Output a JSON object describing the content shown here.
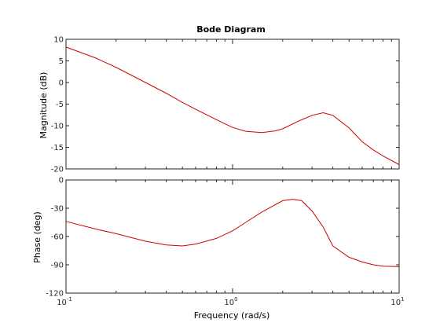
{
  "chart_data": [
    {
      "type": "line",
      "title": "Bode Diagram",
      "xlabel": "Frequency  (rad/s)",
      "ylabel": "Magnitude (dB)",
      "xscale": "log",
      "xlim": [
        0.1,
        10
      ],
      "ylim": [
        -20,
        10
      ],
      "yticks": [
        10,
        5,
        0,
        -5,
        -10,
        -15,
        -20
      ],
      "grid": false,
      "line_color": "#d00000",
      "series": [
        {
          "x": [
            0.1,
            0.15,
            0.2,
            0.3,
            0.4,
            0.5,
            0.6,
            0.8,
            1.0,
            1.2,
            1.5,
            1.8,
            2.0,
            2.5,
            3.0,
            3.5,
            4.0,
            5.0,
            6.0,
            7.0,
            8.0,
            10.0
          ],
          "y": [
            8.2,
            5.7,
            3.5,
            0.0,
            -2.5,
            -4.6,
            -6.2,
            -8.6,
            -10.4,
            -11.3,
            -11.6,
            -11.2,
            -10.7,
            -8.9,
            -7.6,
            -7.0,
            -7.6,
            -10.5,
            -13.7,
            -15.6,
            -17.0,
            -19.0
          ]
        }
      ]
    },
    {
      "type": "line",
      "xlabel": "Frequency  (rad/s)",
      "ylabel": "Phase (deg)",
      "xscale": "log",
      "xlim": [
        0.1,
        10
      ],
      "ylim": [
        -120,
        0
      ],
      "yticks": [
        0,
        -30,
        -60,
        -90,
        -120
      ],
      "xticks": [
        {
          "base": "10",
          "exp": "-1"
        },
        {
          "base": "10",
          "exp": "0"
        },
        {
          "base": "10",
          "exp": "1"
        }
      ],
      "grid": false,
      "line_color": "#d00000",
      "series": [
        {
          "x": [
            0.1,
            0.15,
            0.2,
            0.3,
            0.4,
            0.5,
            0.6,
            0.8,
            1.0,
            1.2,
            1.5,
            2.0,
            2.3,
            2.6,
            3.0,
            3.5,
            4.0,
            5.0,
            6.0,
            7.0,
            8.0,
            10.0
          ],
          "y": [
            -44,
            -52,
            -57,
            -65,
            -69,
            -70,
            -68,
            -62,
            -54,
            -45,
            -34,
            -22,
            -20.5,
            -22,
            -33,
            -50,
            -70,
            -82,
            -87,
            -90,
            -91.5,
            -92
          ]
        }
      ]
    }
  ]
}
